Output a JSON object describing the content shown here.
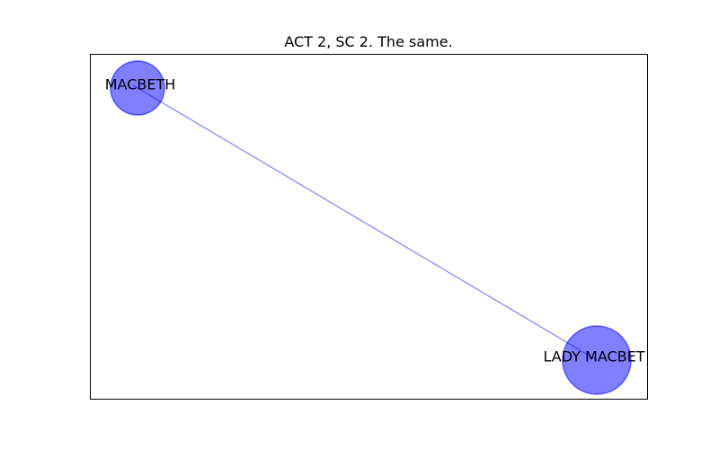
{
  "title": "ACT 2, SC 2. The same.",
  "colors": {
    "node_fill": "#0000ff",
    "node_fill_opacity": 0.5,
    "edge": "#0000ff",
    "edge_opacity": 0.5,
    "frame": "#000000",
    "text": "#000000"
  },
  "nodes": [
    {
      "id": "macbeth",
      "label": "MACBETH",
      "weight": 1
    },
    {
      "id": "lady-macbeth",
      "label": "LADY MACBET",
      "weight": 2
    }
  ],
  "edges": [
    {
      "source": "macbeth",
      "target": "lady-macbeth"
    }
  ]
}
